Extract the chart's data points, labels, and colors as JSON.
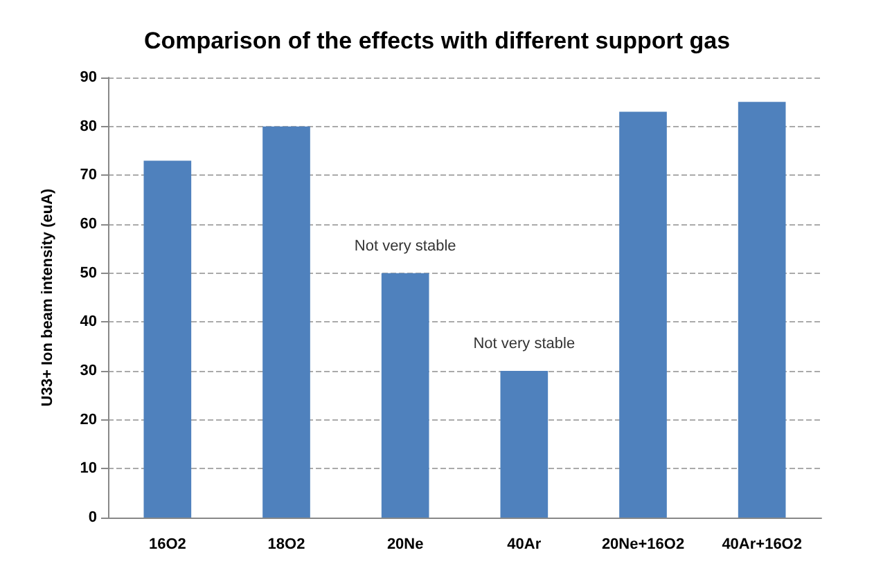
{
  "chart_data": {
    "type": "bar",
    "title": "Comparison of the effects with different support gas",
    "ylabel": "U33+ Ion beam intensity (euA)",
    "categories": [
      "16O2",
      "18O2",
      "20Ne",
      "40Ar",
      "20Ne+16O2",
      "40Ar+16O2"
    ],
    "values": [
      73,
      80,
      50,
      30,
      83,
      85
    ],
    "color": "#4f81bd",
    "ylim": [
      0,
      90
    ],
    "yticks": [
      0,
      10,
      20,
      30,
      40,
      50,
      60,
      70,
      80,
      90
    ],
    "grid": "y",
    "annotations": [
      {
        "text": "Not very stable",
        "x": "20Ne",
        "y": 50
      },
      {
        "text": "Not very stable",
        "x": "40Ar",
        "y": 30
      }
    ]
  }
}
